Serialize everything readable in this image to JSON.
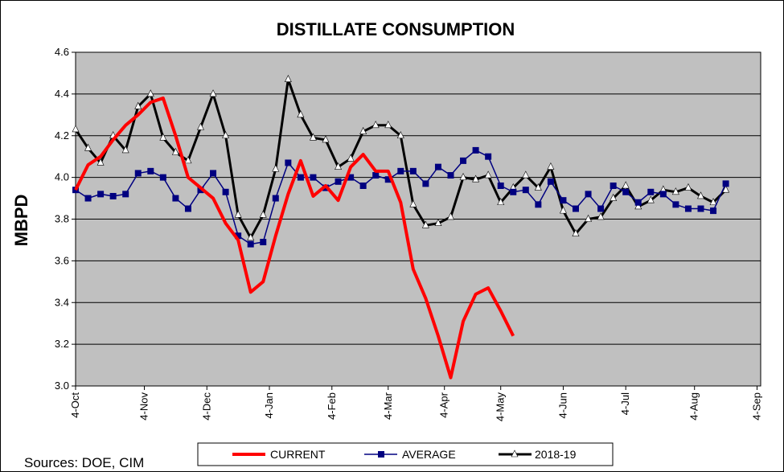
{
  "chart_data": {
    "type": "line",
    "title": "DISTILLATE CONSUMPTION",
    "ylabel": "MBPD",
    "xlabel": "",
    "ylim": [
      3.0,
      4.6
    ],
    "yticks": [
      "3.0",
      "3.2",
      "3.4",
      "3.6",
      "3.8",
      "4.0",
      "4.2",
      "4.4",
      "4.6"
    ],
    "x_tick_labels": [
      "4-Oct",
      "4-Nov",
      "4-Dec",
      "4-Jan",
      "4-Feb",
      "4-Mar",
      "4-Apr",
      "4-May",
      "4-Jun",
      "4-Jul",
      "4-Aug",
      "4-Sep"
    ],
    "x_tick_weeks": [
      0,
      5.5,
      10.5,
      15.5,
      20.5,
      25,
      29.5,
      34,
      39,
      44,
      49.5,
      54.5
    ],
    "grid": "horizontal",
    "legend_position": "bottom",
    "source": "Sources:  DOE, CIM",
    "series": [
      {
        "name": "CURRENT",
        "color": "#ff0000",
        "marker": "none",
        "values": [
          3.94,
          4.06,
          4.1,
          4.18,
          4.25,
          4.3,
          4.36,
          4.38,
          4.2,
          4.0,
          3.95,
          3.9,
          3.78,
          3.7,
          3.45,
          3.5,
          3.72,
          3.92,
          4.08,
          3.91,
          3.96,
          3.89,
          4.05,
          4.11,
          4.03,
          4.03,
          3.88,
          3.56,
          3.42,
          3.24,
          3.04,
          3.31,
          3.44,
          3.47,
          3.36,
          3.24
        ]
      },
      {
        "name": "AVERAGE",
        "color": "#000080",
        "marker": "square",
        "values": [
          3.94,
          3.9,
          3.92,
          3.91,
          3.92,
          4.02,
          4.03,
          4.0,
          3.9,
          3.85,
          3.94,
          4.02,
          3.93,
          3.72,
          3.68,
          3.69,
          3.9,
          4.07,
          4.0,
          4.0,
          3.95,
          3.98,
          4.0,
          3.96,
          4.01,
          3.99,
          4.03,
          4.03,
          3.97,
          4.05,
          4.01,
          4.08,
          4.13,
          4.1,
          3.96,
          3.93,
          3.94,
          3.87,
          3.98,
          3.89,
          3.85,
          3.92,
          3.85,
          3.96,
          3.93,
          3.88,
          3.93,
          3.92,
          3.87,
          3.85,
          3.85,
          3.84,
          3.97
        ]
      },
      {
        "name": "2018-19",
        "color": "#000000",
        "marker": "triangle",
        "values": [
          4.23,
          4.14,
          4.07,
          4.2,
          4.13,
          4.34,
          4.4,
          4.19,
          4.12,
          4.08,
          4.24,
          4.4,
          4.2,
          3.82,
          3.71,
          3.82,
          4.04,
          4.47,
          4.3,
          4.19,
          4.18,
          4.05,
          4.09,
          4.22,
          4.25,
          4.25,
          4.2,
          3.87,
          3.77,
          3.78,
          3.81,
          4.0,
          3.99,
          4.01,
          3.88,
          3.95,
          4.01,
          3.95,
          4.05,
          3.84,
          3.73,
          3.8,
          3.81,
          3.9,
          3.96,
          3.86,
          3.89,
          3.94,
          3.93,
          3.95,
          3.91,
          3.88,
          3.94
        ]
      }
    ]
  }
}
